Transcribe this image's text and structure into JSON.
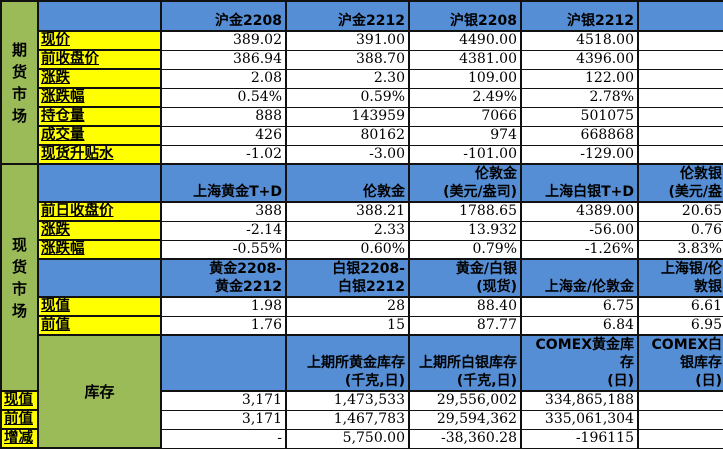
{
  "colors": {
    "header": "#558ed5",
    "label": "#ffff00",
    "section": "#9bbb59"
  },
  "futures": {
    "section": "期货市场",
    "headers": [
      "沪金2208",
      "沪金2212",
      "沪银2208",
      "沪银2212",
      ""
    ],
    "rows": [
      {
        "label": "现价",
        "values": [
          "389.02",
          "391.00",
          "4490.00",
          "4518.00",
          ""
        ]
      },
      {
        "label": "前收盘价",
        "values": [
          "386.94",
          "388.70",
          "4381.00",
          "4396.00",
          ""
        ]
      },
      {
        "label": "涨跌",
        "values": [
          "2.08",
          "2.30",
          "109.00",
          "122.00",
          ""
        ]
      },
      {
        "label": "涨跌幅",
        "values": [
          "0.54%",
          "0.59%",
          "2.49%",
          "2.78%",
          ""
        ]
      },
      {
        "label": "持仓量",
        "values": [
          "888",
          "143959",
          "7066",
          "501075",
          ""
        ]
      },
      {
        "label": "成交量",
        "values": [
          "426",
          "80162",
          "974",
          "668868",
          ""
        ]
      },
      {
        "label": "现货升贴水",
        "values": [
          "-1.02",
          "-3.00",
          "-101.00",
          "-129.00",
          ""
        ]
      }
    ]
  },
  "spot": {
    "section": "现货市场",
    "headers": [
      "上海黄金T+D",
      "伦敦金",
      "伦敦金\n(美元/盎司)",
      "上海白银T+D",
      "伦敦银\n(美元/盎"
    ],
    "rows": [
      {
        "label": "前日收盘价",
        "values": [
          "388",
          "388.21",
          "1788.65",
          "4389.00",
          "20.65"
        ]
      },
      {
        "label": "涨跌",
        "values": [
          "-2.14",
          "2.33",
          "13.932",
          "-56.00",
          "0.76"
        ]
      },
      {
        "label": "涨跌幅",
        "values": [
          "-0.55%",
          "0.60%",
          "0.79%",
          "-1.26%",
          "3.83%"
        ]
      }
    ],
    "headers2": [
      "黄金2208-\n黄金2212",
      "白银2208-\n白银2212",
      "黄金/白银\n(现货)",
      "上海金/伦敦金",
      "上海银/伦\n敦银"
    ],
    "rows2": [
      {
        "label": "现值",
        "values": [
          "1.98",
          "28",
          "88.40",
          "6.75",
          "6.61"
        ]
      },
      {
        "label": "前值",
        "values": [
          "1.76",
          "15",
          "87.77",
          "6.84",
          "6.95"
        ]
      }
    ]
  },
  "inventory": {
    "section": "库存",
    "headers": [
      "上期所黄金库存\n(千克,日)",
      "上期所白银库存\n(千克,日)",
      "COMEX黄金库存\n(日)",
      "COMEX白银库存\n(日)",
      ""
    ],
    "rows": [
      {
        "label": "现值",
        "values": [
          "3,171",
          "1,473,533",
          "29,556,002",
          "334,865,188",
          ""
        ]
      },
      {
        "label": "前值",
        "values": [
          "3,171",
          "1,467,783",
          "29,594,362",
          "335,061,304",
          ""
        ]
      },
      {
        "label": "增减",
        "values": [
          "-",
          "5,750.00",
          "-38,360.28",
          "-196115",
          ""
        ]
      }
    ]
  }
}
